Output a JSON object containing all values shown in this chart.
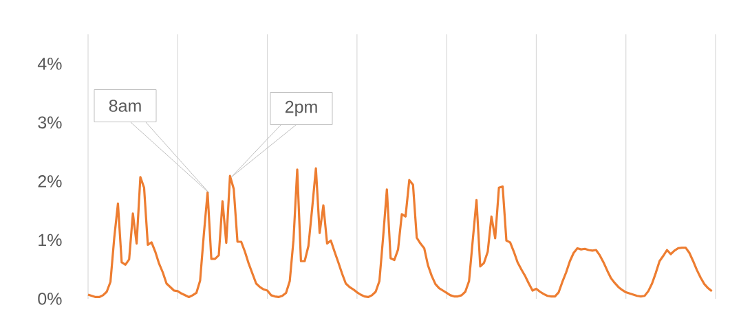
{
  "chart_data": {
    "type": "line",
    "categories": [
      null,
      null,
      null,
      null,
      null,
      null,
      null,
      null,
      null,
      null,
      null,
      null,
      null,
      null,
      null,
      null,
      null,
      null,
      null,
      null,
      null,
      null,
      null,
      null,
      null,
      null,
      null,
      null,
      null,
      null,
      null,
      null,
      null,
      null,
      null,
      null,
      null,
      null,
      null,
      null,
      null,
      null,
      null,
      null,
      null,
      null,
      null,
      null,
      null,
      null,
      null,
      null,
      null,
      null,
      null,
      null,
      null,
      null,
      null,
      null,
      null,
      null,
      null,
      null,
      null,
      null,
      null,
      null,
      null,
      null,
      null,
      null,
      null,
      null,
      null,
      null,
      null,
      null,
      null,
      null,
      null,
      null,
      null,
      null,
      null,
      null,
      null,
      null,
      null,
      null,
      null,
      null,
      null,
      null,
      null,
      null,
      null,
      null,
      null,
      null,
      null,
      null,
      null,
      null,
      null,
      null,
      null,
      null,
      null,
      null,
      null,
      null,
      null,
      null,
      null,
      null,
      null,
      null,
      null,
      null,
      null,
      null,
      null,
      null,
      null,
      null,
      null,
      null,
      null,
      null,
      null,
      null,
      null,
      null,
      null,
      null,
      null,
      null,
      null,
      null,
      null,
      null,
      null,
      null,
      null,
      null,
      null,
      null,
      null,
      null,
      null,
      null,
      null,
      null,
      null,
      null,
      null,
      null,
      null,
      null,
      null,
      null,
      null,
      null,
      null,
      null,
      null,
      null
    ],
    "values": [
      0.07,
      0.05,
      0.03,
      0.03,
      0.06,
      0.12,
      0.29,
      1.03,
      1.62,
      0.62,
      0.58,
      0.67,
      1.45,
      0.94,
      2.07,
      1.89,
      0.92,
      0.96,
      0.8,
      0.6,
      0.45,
      0.26,
      0.2,
      0.14,
      0.13,
      0.09,
      0.06,
      0.03,
      0.06,
      0.1,
      0.31,
      1.1,
      1.81,
      0.68,
      0.68,
      0.74,
      1.66,
      0.95,
      2.09,
      1.87,
      0.97,
      0.97,
      0.8,
      0.6,
      0.43,
      0.26,
      0.2,
      0.16,
      0.14,
      0.06,
      0.04,
      0.03,
      0.05,
      0.1,
      0.3,
      1.0,
      2.2,
      0.64,
      0.64,
      0.9,
      1.54,
      2.22,
      1.12,
      1.59,
      0.94,
      0.99,
      0.8,
      0.62,
      0.43,
      0.26,
      0.2,
      0.16,
      0.11,
      0.07,
      0.04,
      0.03,
      0.06,
      0.12,
      0.3,
      1.05,
      1.86,
      0.69,
      0.66,
      0.84,
      1.44,
      1.4,
      2.02,
      1.94,
      1.04,
      0.94,
      0.86,
      0.57,
      0.39,
      0.25,
      0.18,
      0.14,
      0.1,
      0.06,
      0.04,
      0.04,
      0.06,
      0.12,
      0.3,
      1.0,
      1.68,
      0.55,
      0.61,
      0.8,
      1.4,
      1.03,
      1.89,
      1.91,
      0.99,
      0.96,
      0.8,
      0.62,
      0.5,
      0.39,
      0.26,
      0.14,
      0.17,
      0.12,
      0.08,
      0.05,
      0.04,
      0.04,
      0.11,
      0.29,
      0.45,
      0.64,
      0.78,
      0.86,
      0.84,
      0.85,
      0.83,
      0.82,
      0.83,
      0.74,
      0.62,
      0.48,
      0.35,
      0.27,
      0.2,
      0.15,
      0.11,
      0.09,
      0.07,
      0.05,
      0.04,
      0.05,
      0.13,
      0.26,
      0.44,
      0.64,
      0.73,
      0.83,
      0.76,
      0.82,
      0.86,
      0.87,
      0.87,
      0.78,
      0.64,
      0.49,
      0.36,
      0.25,
      0.18,
      0.13
    ],
    "color": "#ed7d31",
    "ylim": [
      0,
      4.5
    ],
    "yticks": [
      {
        "value": 0,
        "label": "0%"
      },
      {
        "value": 1,
        "label": "1%"
      },
      {
        "value": 2,
        "label": "2%"
      },
      {
        "value": 3,
        "label": "3%"
      },
      {
        "value": 4,
        "label": "4%"
      }
    ],
    "tick_labels": "y",
    "grid": "x",
    "annotations": [
      "8am",
      "2pm"
    ]
  }
}
